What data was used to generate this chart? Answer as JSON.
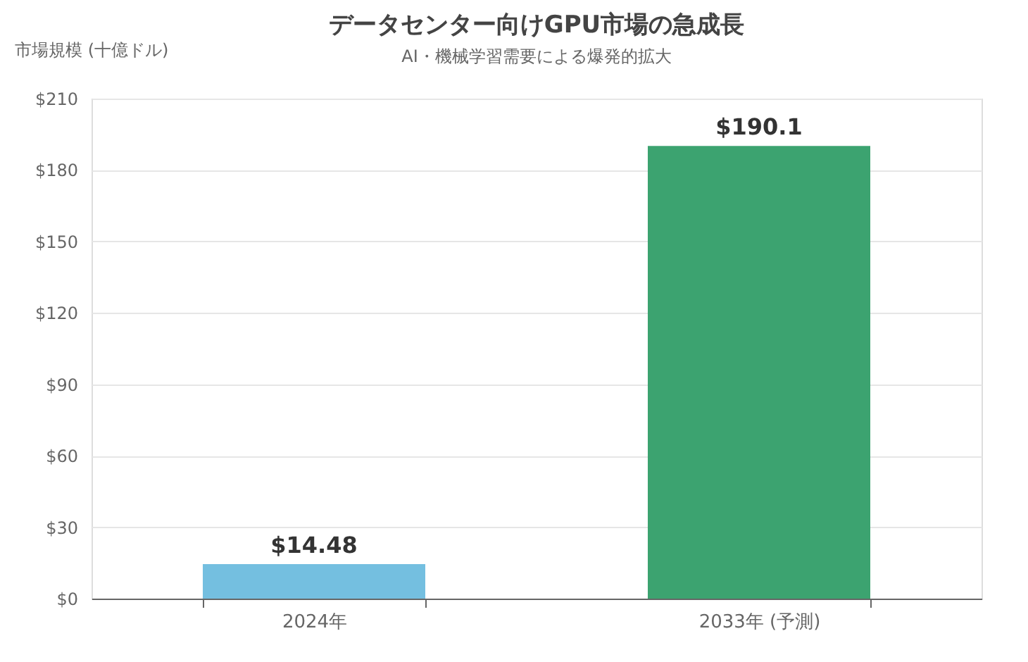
{
  "chart_data": {
    "type": "bar",
    "title": "データセンター向けGPU市場の急成長",
    "subtitle": "AI・機械学習需要による爆発的拡大",
    "ylabel": "市場規模 (十億ドル)",
    "categories": [
      "2024年",
      "2033年 (予測)"
    ],
    "values": [
      14.48,
      190.1
    ],
    "colors": [
      "#74bfe0",
      "#3ca370"
    ],
    "value_labels": [
      "$14.48",
      "$190.1"
    ],
    "ylim": [
      0,
      210
    ],
    "yticks": [
      {
        "value": 0,
        "label": "$0"
      },
      {
        "value": 30,
        "label": "$30"
      },
      {
        "value": 60,
        "label": "$60"
      },
      {
        "value": 90,
        "label": "$90"
      },
      {
        "value": 120,
        "label": "$120"
      },
      {
        "value": 150,
        "label": "$150"
      },
      {
        "value": 180,
        "label": "$180"
      },
      {
        "value": 210,
        "label": "$210"
      }
    ],
    "grid": "y",
    "legend": false
  }
}
